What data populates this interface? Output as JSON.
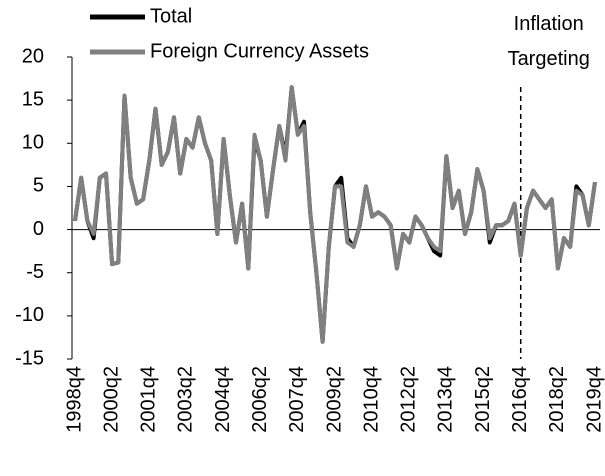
{
  "chart_data": {
    "type": "line",
    "categories": [
      "1998q4",
      null,
      null,
      null,
      null,
      null,
      "2000q2",
      null,
      null,
      null,
      null,
      null,
      "2001q4",
      null,
      null,
      null,
      null,
      null,
      "2003q2",
      null,
      null,
      null,
      null,
      null,
      "2004q4",
      null,
      null,
      null,
      null,
      null,
      "2006q2",
      null,
      null,
      null,
      null,
      null,
      "2007q4",
      null,
      null,
      null,
      null,
      null,
      "2009q2",
      null,
      null,
      null,
      null,
      null,
      "2010q4",
      null,
      null,
      null,
      null,
      null,
      "2012q2",
      null,
      null,
      null,
      null,
      null,
      "2013q4",
      null,
      null,
      null,
      null,
      null,
      "2015q2",
      null,
      null,
      null,
      null,
      null,
      "2016q4",
      null,
      null,
      null,
      null,
      null,
      "2018q2",
      null,
      null,
      null,
      null,
      null,
      "2019q4"
    ],
    "series": [
      {
        "name": "Total",
        "color": "#000000",
        "values": [
          1,
          6,
          1,
          -1,
          6,
          6.5,
          -4,
          -3.8,
          15.5,
          6,
          3,
          3.5,
          8,
          14,
          7.5,
          9,
          13,
          6.5,
          10.5,
          9.5,
          13,
          10,
          8,
          -0.5,
          10.5,
          4,
          -1.5,
          3,
          -4.5,
          10.5,
          8,
          1.5,
          7,
          12,
          8.5,
          16.5,
          11,
          12.5,
          2,
          -5,
          -13,
          -2,
          5,
          6,
          -1,
          -2,
          0.5,
          5,
          1.5,
          2,
          1.5,
          0.5,
          -4.5,
          -0.5,
          -1.5,
          1.5,
          0.5,
          -1,
          -2.5,
          -3,
          8.5,
          2.5,
          4.5,
          -0.5,
          2,
          7,
          4.5,
          -1.5,
          0.5,
          0.5,
          1,
          3,
          -3,
          2.5,
          4.5,
          3.5,
          2.5,
          3.5,
          -4.5,
          -1,
          -2,
          5,
          4,
          0.5,
          5.5
        ]
      },
      {
        "name": "Foreign Currency Assets",
        "color": "#808080",
        "values": [
          1,
          6,
          1,
          -0.5,
          6,
          6.5,
          -4,
          -3.8,
          15.5,
          6,
          3,
          3.5,
          8,
          14,
          7.5,
          9,
          13,
          6.5,
          10.5,
          9.5,
          13,
          10,
          8,
          -0.5,
          10.5,
          4,
          -1.5,
          3,
          -4.5,
          11,
          8,
          1.5,
          7,
          12,
          8,
          16.5,
          11,
          12,
          2,
          -5,
          -13,
          -2,
          5,
          5,
          -1.5,
          -2,
          0.5,
          5,
          1.5,
          2,
          1.5,
          0.5,
          -4.5,
          -0.5,
          -1.5,
          1.5,
          0.5,
          -1,
          -2,
          -2.5,
          8.5,
          2.5,
          4.5,
          -0.5,
          2,
          7,
          4.5,
          -1,
          0.5,
          0.5,
          1,
          3,
          -3,
          2.5,
          4.5,
          3.5,
          2.5,
          3.5,
          -4.5,
          -1,
          -2,
          4.5,
          4,
          0.5,
          5.5
        ]
      }
    ],
    "ylim": [
      -15,
      20
    ],
    "yticks": [
      -15,
      -10,
      -5,
      0,
      5,
      10,
      15,
      20
    ],
    "legend": "top-left",
    "annotations": [
      {
        "text": "Inflation Targeting",
        "category": "2016q4"
      }
    ]
  }
}
